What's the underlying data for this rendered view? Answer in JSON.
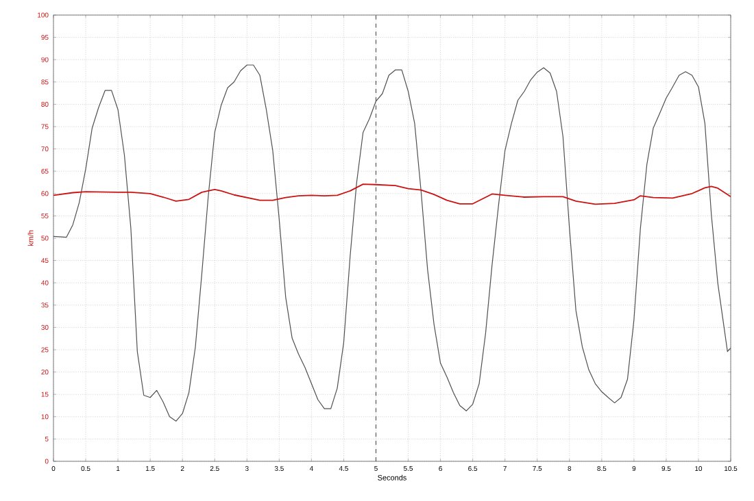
{
  "chart_data": {
    "type": "line",
    "xlabel": "Seconds",
    "ylabel": "km/h",
    "xlim": [
      0,
      10.5
    ],
    "ylim": [
      0,
      100
    ],
    "xticks": [
      0,
      0.5,
      1,
      1.5,
      2,
      2.5,
      3,
      3.5,
      4,
      4.5,
      5,
      5.5,
      6,
      6.5,
      7,
      7.5,
      8,
      8.5,
      9,
      9.5,
      10,
      10.5
    ],
    "yticks": [
      0,
      5,
      10,
      15,
      20,
      25,
      30,
      35,
      40,
      45,
      50,
      55,
      60,
      65,
      70,
      75,
      80,
      85,
      90,
      95,
      100
    ],
    "grid": true,
    "ref_lines": [
      {
        "axis": "x",
        "value": 5,
        "color": "#555555",
        "line_style": "dashed"
      }
    ],
    "series": [
      {
        "color": "#505050",
        "x": [
          0,
          0.2,
          0.3,
          0.4,
          0.5,
          0.6,
          0.7,
          0.8,
          0.9,
          1.0,
          1.1,
          1.2,
          1.3,
          1.4,
          1.5,
          1.6,
          1.7,
          1.8,
          1.9,
          2.0,
          2.1,
          2.2,
          2.3,
          2.4,
          2.5,
          2.6,
          2.7,
          2.8,
          2.9,
          3.0,
          3.1,
          3.2,
          3.3,
          3.4,
          3.5,
          3.6,
          3.7,
          3.8,
          3.9,
          4.0,
          4.1,
          4.2,
          4.3,
          4.4,
          4.5,
          4.6,
          4.7,
          4.8,
          4.9,
          5.0,
          5.1,
          5.2,
          5.3,
          5.4,
          5.5,
          5.6,
          5.7,
          5.8,
          5.9,
          6.0,
          6.1,
          6.2,
          6.3,
          6.4,
          6.5,
          6.6,
          6.7,
          6.8,
          6.9,
          7.0,
          7.1,
          7.2,
          7.3,
          7.4,
          7.5,
          7.6,
          7.7,
          7.8,
          7.9,
          8.0,
          8.1,
          8.2,
          8.3,
          8.4,
          8.5,
          8.6,
          8.7,
          8.8,
          8.9,
          9.0,
          9.1,
          9.2,
          9.3,
          9.4,
          9.5,
          9.6,
          9.7,
          9.8,
          9.9,
          10.0,
          10.1,
          10.2,
          10.3,
          10.4,
          10.45,
          10.5
        ],
        "values": [
          50.4,
          50.2,
          53,
          58,
          65.5,
          74.7,
          79.3,
          83.1,
          83.1,
          78.8,
          68.6,
          52.2,
          24.6,
          14.8,
          14.3,
          15.9,
          13.3,
          10,
          9,
          10.7,
          15.4,
          25.6,
          42,
          59.4,
          73.7,
          79.8,
          83.7,
          85,
          87.5,
          88.8,
          88.8,
          86.5,
          78.8,
          69.6,
          54.2,
          36.8,
          27.6,
          24,
          21,
          17.4,
          13.8,
          11.8,
          11.8,
          16.4,
          26.6,
          46,
          62.4,
          73.7,
          76.8,
          80.7,
          82.4,
          86.5,
          87.7,
          87.7,
          82.9,
          75.7,
          60.4,
          43,
          30.7,
          22,
          18.9,
          15.4,
          12.5,
          11.3,
          12.8,
          17.4,
          28.7,
          44,
          57.3,
          69.6,
          75.7,
          80.9,
          82.9,
          85.5,
          87.2,
          88.2,
          87,
          82.9,
          72.7,
          52.2,
          33.8,
          25.6,
          20.5,
          17.4,
          15.6,
          14.3,
          13.1,
          14.3,
          18.4,
          31.7,
          52.2,
          66.5,
          74.7,
          78,
          81.4,
          83.9,
          86.5,
          87.3,
          86.5,
          83.9,
          75.7,
          55.3,
          39.9,
          29.7,
          24.6,
          25.4
        ]
      },
      {
        "color": "#cc1111",
        "x": [
          0,
          0.3,
          0.5,
          1,
          1.2,
          1.5,
          1.7,
          1.9,
          2.1,
          2.3,
          2.5,
          2.6,
          2.8,
          3.0,
          3.2,
          3.4,
          3.6,
          3.8,
          4.0,
          4.2,
          4.4,
          4.6,
          4.8,
          5,
          5.3,
          5.5,
          5.7,
          5.9,
          6.1,
          6.3,
          6.5,
          6.8,
          7.0,
          7.3,
          7.6,
          7.9,
          8.1,
          8.4,
          8.7,
          9.0,
          9.1,
          9.3,
          9.6,
          9.9,
          10.1,
          10.2,
          10.3,
          10.5
        ],
        "values": [
          59.6,
          60.2,
          60.4,
          60.3,
          60.3,
          60,
          59.2,
          58.3,
          58.7,
          60.3,
          60.9,
          60.6,
          59.7,
          59.1,
          58.5,
          58.5,
          59.1,
          59.5,
          59.6,
          59.5,
          59.6,
          60.6,
          62.1,
          62,
          61.8,
          61.1,
          60.8,
          59.8,
          58.5,
          57.7,
          57.7,
          59.9,
          59.6,
          59.2,
          59.3,
          59.3,
          58.3,
          57.6,
          57.8,
          58.6,
          59.5,
          59.1,
          59,
          60,
          61.3,
          61.6,
          61.2,
          59.3
        ]
      }
    ]
  }
}
